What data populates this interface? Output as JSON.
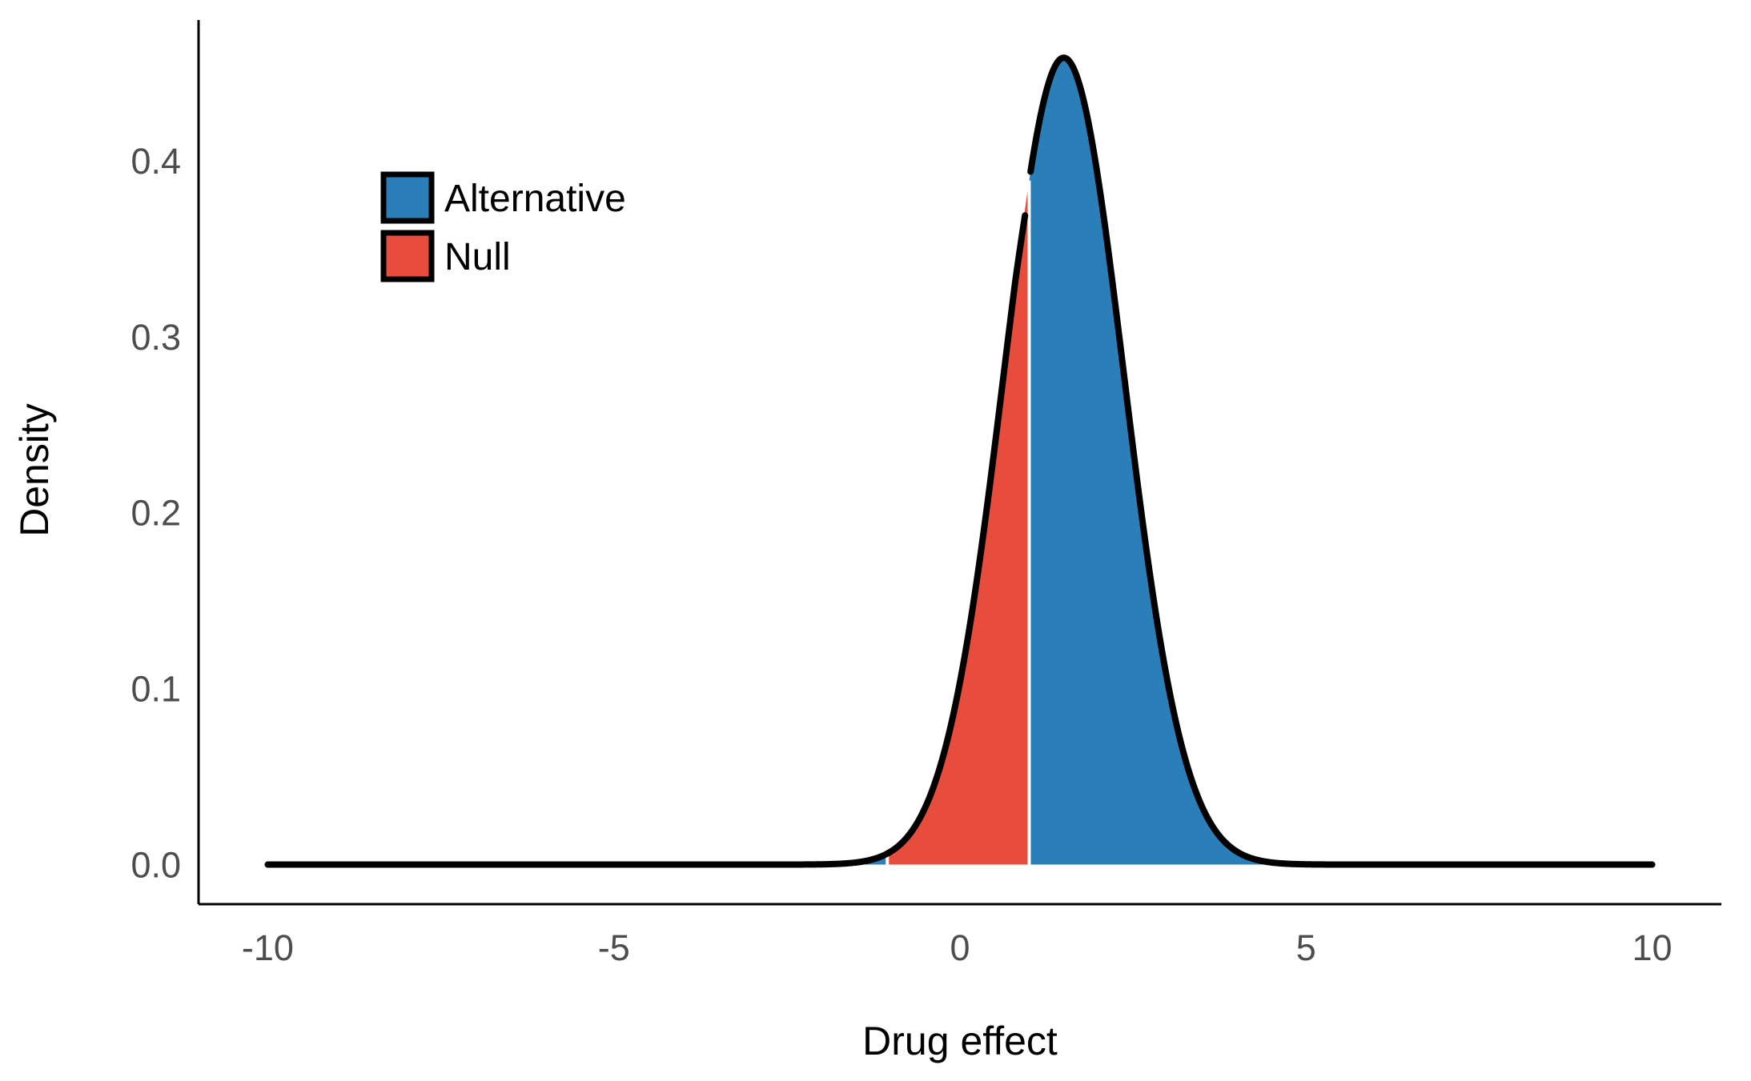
{
  "chart_data": {
    "type": "area",
    "title": "",
    "xlabel": "Drug effect",
    "ylabel": "Density",
    "xlim": [
      -11,
      11
    ],
    "ylim": [
      -0.0225,
      0.48
    ],
    "x_ticks": [
      -10,
      -5,
      0,
      5,
      10
    ],
    "x_tick_labels": [
      "-10",
      "-5",
      "0",
      "5",
      "10"
    ],
    "y_ticks": [
      0.0,
      0.1,
      0.2,
      0.3,
      0.4
    ],
    "y_tick_labels": [
      "0.0",
      "0.1",
      "0.2",
      "0.3",
      "0.4"
    ],
    "grid": false,
    "legend": {
      "position": "top-left",
      "entries": [
        {
          "label": "Alternative",
          "color": "#2b7fb8"
        },
        {
          "label": "Null",
          "color": "#e74c3c"
        }
      ]
    },
    "curve": {
      "distribution": "normal",
      "mean": 1.5,
      "sd": 0.87,
      "x_range": [
        -10,
        10
      ],
      "color": "#000000"
    },
    "series": [
      {
        "name": "Alternative",
        "x_range": [
          -1.5,
          -1.05
        ],
        "color": "#2b7fb8"
      },
      {
        "name": "Null",
        "x_range": [
          -1.05,
          1.0
        ],
        "color": "#e74c3c"
      },
      {
        "name": "Alternative",
        "x_range": [
          1.0,
          4.5
        ],
        "color": "#2b7fb8"
      }
    ]
  }
}
